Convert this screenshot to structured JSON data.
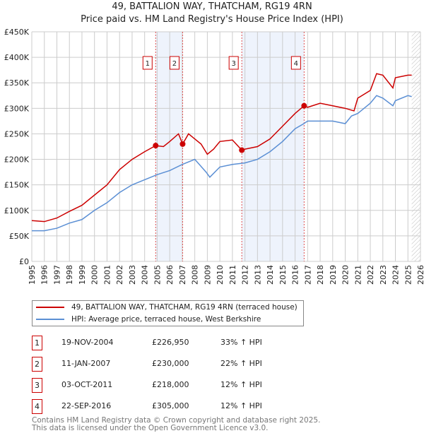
{
  "title": "49, BATTALION WAY, THATCHAM, RG19 4RN",
  "subtitle": "Price paid vs. HM Land Registry's House Price Index (HPI)",
  "chart_data": {
    "type": "line",
    "xlim": [
      1995,
      2026
    ],
    "ylim": [
      0,
      450000
    ],
    "yticks": [
      0,
      50000,
      100000,
      150000,
      200000,
      250000,
      300000,
      350000,
      400000,
      450000
    ],
    "ytick_labels": [
      "£0",
      "£50K",
      "£100K",
      "£150K",
      "£200K",
      "£250K",
      "£300K",
      "£350K",
      "£400K",
      "£450K"
    ],
    "xticks": [
      1995,
      1996,
      1997,
      1998,
      1999,
      2000,
      2001,
      2002,
      2003,
      2004,
      2005,
      2006,
      2007,
      2008,
      2009,
      2010,
      2011,
      2012,
      2013,
      2014,
      2015,
      2016,
      2017,
      2018,
      2019,
      2020,
      2021,
      2022,
      2023,
      2024,
      2025,
      2026
    ],
    "shaded_ranges": [
      [
        2004.88,
        2007.03
      ],
      [
        2011.75,
        2016.72
      ]
    ],
    "hatched_from": 2025.3,
    "colors": {
      "property": "#cc0000",
      "hpi": "#5b8fd4",
      "shade": "#eef3fc",
      "marker_line": "#e05050"
    },
    "series": [
      {
        "name": "49, BATTALION WAY, THATCHAM, RG19 4RN (terraced house)",
        "x": [
          1995,
          1996,
          1997,
          1998,
          1999,
          2000,
          2001,
          2002,
          2003,
          2004,
          2004.88,
          2005.5,
          2006,
          2006.7,
          2007.03,
          2007.5,
          2008,
          2008.5,
          2009,
          2009.5,
          2010,
          2011,
          2011.75,
          2012,
          2013,
          2014,
          2015,
          2016,
          2016.72,
          2017,
          2018,
          2019,
          2020,
          2020.7,
          2021,
          2022,
          2022.5,
          2023,
          2023.8,
          2024,
          2025,
          2025.3
        ],
        "values": [
          80000,
          78000,
          85000,
          98000,
          110000,
          130000,
          150000,
          180000,
          200000,
          215000,
          226950,
          225000,
          235000,
          250000,
          230000,
          250000,
          240000,
          230000,
          210000,
          220000,
          235000,
          238000,
          218000,
          220000,
          225000,
          240000,
          265000,
          290000,
          305000,
          302000,
          310000,
          305000,
          300000,
          295000,
          320000,
          335000,
          368000,
          365000,
          340000,
          360000,
          365000,
          365000
        ]
      },
      {
        "name": "HPI: Average price, terraced house, West Berkshire",
        "x": [
          1995,
          1996,
          1997,
          1998,
          1999,
          2000,
          2001,
          2002,
          2003,
          2004,
          2005,
          2006,
          2007,
          2008,
          2008.9,
          2009.2,
          2010,
          2011,
          2012,
          2013,
          2014,
          2015,
          2016,
          2016.7,
          2017,
          2018,
          2019,
          2020,
          2020.5,
          2021,
          2022,
          2022.5,
          2023,
          2023.8,
          2024,
          2025,
          2025.3
        ],
        "values": [
          60000,
          60000,
          65000,
          75000,
          82000,
          100000,
          115000,
          135000,
          150000,
          160000,
          170000,
          178000,
          190000,
          200000,
          175000,
          165000,
          185000,
          190000,
          193000,
          200000,
          215000,
          235000,
          260000,
          270000,
          275000,
          275000,
          275000,
          270000,
          285000,
          290000,
          310000,
          325000,
          320000,
          305000,
          315000,
          325000,
          323000
        ]
      }
    ],
    "sales": [
      {
        "label": "1",
        "x": 2004.88,
        "value": 226950
      },
      {
        "label": "2",
        "x": 2007.03,
        "value": 230000
      },
      {
        "label": "3",
        "x": 2011.75,
        "value": 218000
      },
      {
        "label": "4",
        "x": 2016.72,
        "value": 305000
      }
    ]
  },
  "legend": {
    "property": "49, BATTALION WAY, THATCHAM, RG19 4RN (terraced house)",
    "hpi": "HPI: Average price, terraced house, West Berkshire"
  },
  "transactions": [
    {
      "num": "1",
      "date": "19-NOV-2004",
      "price": "£226,950",
      "delta": "33% ↑ HPI"
    },
    {
      "num": "2",
      "date": "11-JAN-2007",
      "price": "£230,000",
      "delta": "22% ↑ HPI"
    },
    {
      "num": "3",
      "date": "03-OCT-2011",
      "price": "£218,000",
      "delta": "12% ↑ HPI"
    },
    {
      "num": "4",
      "date": "22-SEP-2016",
      "price": "£305,000",
      "delta": "12% ↑ HPI"
    }
  ],
  "footer": [
    "Contains HM Land Registry data © Crown copyright and database right 2025.",
    "This data is licensed under the Open Government Licence v3.0."
  ]
}
